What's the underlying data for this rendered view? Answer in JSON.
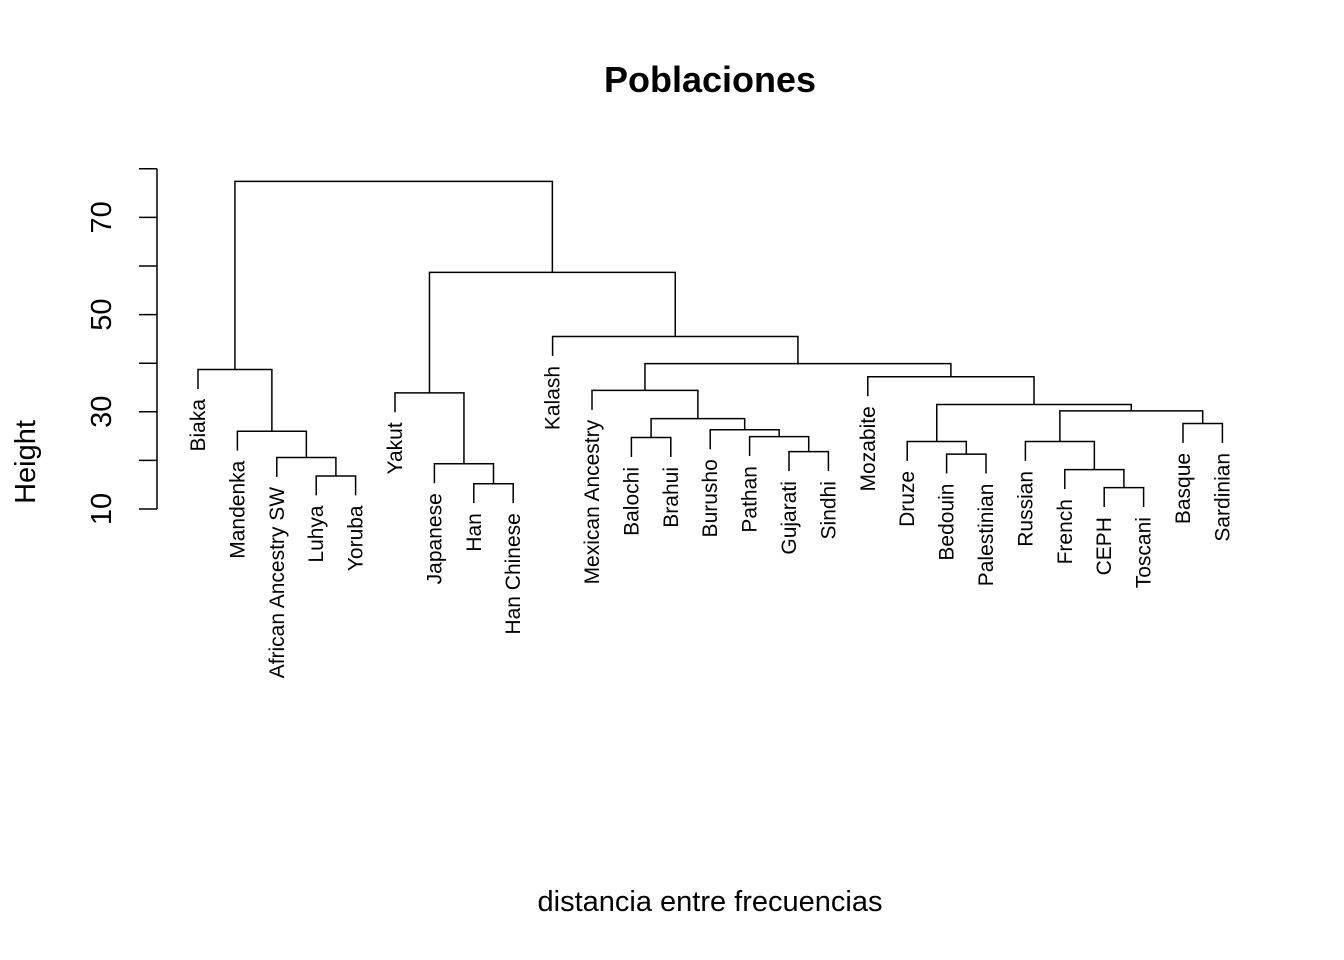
{
  "chart_data": {
    "type": "dendrogram",
    "title": "Poblaciones",
    "xlabel": "distancia entre frecuencias",
    "ylabel": "Height",
    "yticks": [
      10,
      30,
      50,
      70
    ],
    "ylim": [
      10,
      80
    ],
    "hang_offset": 4,
    "grid": false,
    "leaves": [
      "Biaka",
      "Mandenka",
      "African Ancestry SW",
      "Luhya",
      "Yoruba",
      "Yakut",
      "Japanese",
      "Han",
      "Han Chinese",
      "Kalash",
      "Mexican Ancestry",
      "Balochi",
      "Brahui",
      "Burusho",
      "Pathan",
      "Gujarati",
      "Sindhi",
      "Mozabite",
      "Druze",
      "Bedouin",
      "Palestinian",
      "Russian",
      "French",
      "CEPH",
      "Toscani",
      "Basque",
      "Sardinian"
    ],
    "merges": [
      {
        "id": "m1",
        "left": "Luhya",
        "right": "Yoruba",
        "height": 16.8
      },
      {
        "id": "m2",
        "left": "African Ancestry SW",
        "right": "m1",
        "height": 20.6
      },
      {
        "id": "m3",
        "left": "Mandenka",
        "right": "m2",
        "height": 26
      },
      {
        "id": "m4",
        "left": "Biaka",
        "right": "m3",
        "height": 38.7
      },
      {
        "id": "m5",
        "left": "Han",
        "right": "Han Chinese",
        "height": 15.2
      },
      {
        "id": "m6",
        "left": "Japanese",
        "right": "m5",
        "height": 19.3
      },
      {
        "id": "m7",
        "left": "Yakut",
        "right": "m6",
        "height": 33.9
      },
      {
        "id": "m8",
        "left": "Balochi",
        "right": "Brahui",
        "height": 24.7
      },
      {
        "id": "m9",
        "left": "Gujarati",
        "right": "Sindhi",
        "height": 21.8
      },
      {
        "id": "m10",
        "left": "Pathan",
        "right": "m9",
        "height": 24.9
      },
      {
        "id": "m11",
        "left": "Burusho",
        "right": "m10",
        "height": 26.3
      },
      {
        "id": "m12",
        "left": "m8",
        "right": "m11",
        "height": 28.6
      },
      {
        "id": "m13",
        "left": "Mexican Ancestry",
        "right": "m12",
        "height": 34.4
      },
      {
        "id": "m14",
        "left": "Bedouin",
        "right": "Palestinian",
        "height": 21.3
      },
      {
        "id": "m15",
        "left": "Druze",
        "right": "m14",
        "height": 23.9
      },
      {
        "id": "m16",
        "left": "CEPH",
        "right": "Toscani",
        "height": 14.4
      },
      {
        "id": "m17",
        "left": "French",
        "right": "m16",
        "height": 18.1
      },
      {
        "id": "m18",
        "left": "Russian",
        "right": "m17",
        "height": 23.9
      },
      {
        "id": "m19",
        "left": "Basque",
        "right": "Sardinian",
        "height": 27.6
      },
      {
        "id": "m20",
        "left": "m18",
        "right": "m19",
        "height": 30.2
      },
      {
        "id": "m21",
        "left": "m15",
        "right": "m20",
        "height": 31.5
      },
      {
        "id": "m22",
        "left": "Mozabite",
        "right": "m21",
        "height": 37.2
      },
      {
        "id": "m23",
        "left": "m13",
        "right": "m22",
        "height": 39.9
      },
      {
        "id": "m24",
        "left": "Kalash",
        "right": "m23",
        "height": 45.5
      },
      {
        "id": "m25",
        "left": "m7",
        "right": "m24",
        "height": 58.7
      },
      {
        "id": "m26",
        "left": "m4",
        "right": "m25",
        "height": 77.4
      }
    ]
  }
}
